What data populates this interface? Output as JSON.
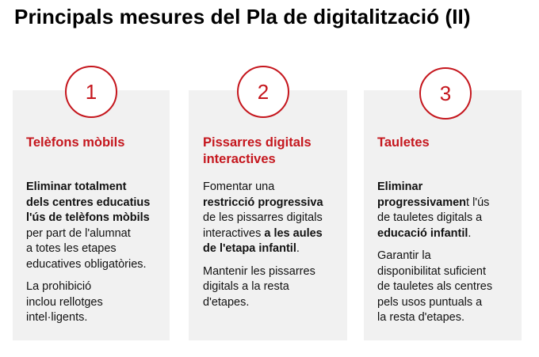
{
  "title": "Principals mesures del Pla de digitalització (II)",
  "colors": {
    "accent": "#c5161d",
    "card_bg": "#f1f1f1"
  },
  "cards": [
    {
      "number": "1",
      "heading": "Telèfons mòbils",
      "p1": [
        {
          "text": "Eliminar totalment",
          "bold": true
        },
        {
          "text": "dels centres educatius",
          "bold": true
        },
        {
          "text": "l'ús de telèfons mòbils",
          "bold": true
        },
        {
          "text": "per part de l'alumnat",
          "bold": false
        },
        {
          "text": "a totes les etapes",
          "bold": false
        },
        {
          "text": "educatives obligatòries.",
          "bold": false
        }
      ],
      "p2": [
        "La prohibició",
        "inclou rellotges",
        "intel·ligents."
      ]
    },
    {
      "number": "2",
      "heading": "Pissarres digitals interactives",
      "p1_l1": "Fomentar una",
      "p1_l2": "restricció progressiva",
      "p1_l3": "de les pissarres digitals",
      "p1_l4a": "interactives",
      "p1_l4b": "a les aules",
      "p1_l5a": "de l'etapa infantil",
      "p1_l5b": ".",
      "p2": [
        "Mantenir les pissarres",
        "digitals a la resta",
        "d'etapes."
      ]
    },
    {
      "number": "3",
      "heading": "Tauletes",
      "p1_l1": "Eliminar",
      "p1_l2a": "progressivamen",
      "p1_l2b": "t l'ús",
      "p1_l3": "de tauletes digitals a",
      "p1_l4a": "educació infantil",
      "p1_l4b": ".",
      "p2": [
        "Garantir la",
        "disponibilitat suficient",
        "de tauletes als centres",
        "pels usos puntuals a",
        "la resta d'etapes."
      ]
    }
  ]
}
